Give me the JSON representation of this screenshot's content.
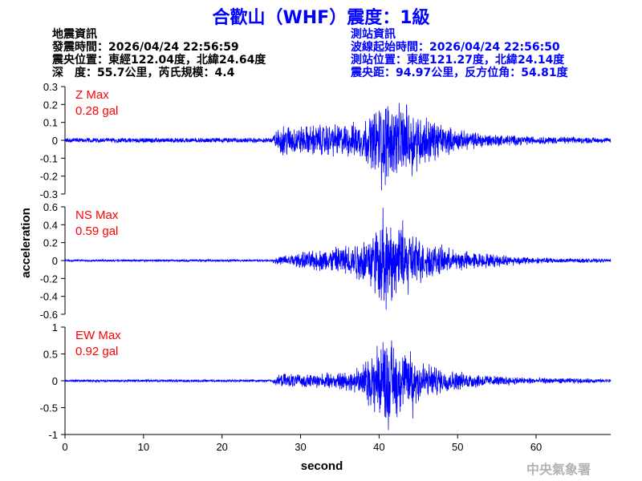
{
  "header": {
    "title": "合歡山（WHF）震度：1級"
  },
  "quake_info": {
    "heading": "地震資訊",
    "origin_time": "發震時間：2026/04/24 22:56:59",
    "epicenter": "震央位置：東經122.04度，北緯24.64度",
    "depth_magnitude": "深　度：55.7公里，芮氏規模：4.4"
  },
  "station_info": {
    "heading": "測站資訊",
    "wave_start": "波線起始時間：2026/04/24 22:56:50",
    "location": "測站位置：東經121.27度，北緯24.14度",
    "distance_azimuth": "震央距：94.97公里，反方位角：54.81度"
  },
  "agency": "中央氣象署",
  "chart_data": {
    "type": "line",
    "xlabel": "second",
    "ylabel": "acceleration",
    "xlim": [
      0,
      69.5
    ],
    "x_ticks": [
      "0",
      "10",
      "20",
      "30",
      "40",
      "50",
      "60"
    ],
    "colors": {
      "trace": "#0000ff",
      "max_label": "#ff0000"
    },
    "panels": [
      {
        "component": "Z",
        "max_label": "Z Max",
        "max_value": "0.28 gal",
        "ylim": [
          -0.3,
          0.3
        ],
        "y_ticks": [
          "0.3",
          "0.2",
          "0.1",
          "0",
          "-0.1",
          "-0.2",
          "-0.3"
        ],
        "noise": 0.012,
        "envelope": [
          [
            0,
            0.012
          ],
          [
            26,
            0.012
          ],
          [
            27,
            0.05
          ],
          [
            28,
            0.08
          ],
          [
            30,
            0.07
          ],
          [
            33,
            0.08
          ],
          [
            36,
            0.08
          ],
          [
            38,
            0.1
          ],
          [
            39,
            0.13
          ],
          [
            40,
            0.17
          ],
          [
            41,
            0.19
          ],
          [
            42,
            0.17
          ],
          [
            43,
            0.17
          ],
          [
            44,
            0.16
          ],
          [
            46,
            0.12
          ],
          [
            48,
            0.08
          ],
          [
            50,
            0.05
          ],
          [
            55,
            0.03
          ],
          [
            60,
            0.02
          ],
          [
            69.5,
            0.012
          ]
        ],
        "peaks": [
          [
            40.3,
            -0.28
          ],
          [
            41.1,
            0.19
          ],
          [
            43.5,
            0.2
          ],
          [
            40.8,
            -0.25
          ],
          [
            44.2,
            -0.2
          ]
        ]
      },
      {
        "component": "NS",
        "max_label": "NS Max",
        "max_value": "0.59 gal",
        "ylim": [
          -0.6,
          0.6
        ],
        "y_ticks": [
          "0.6",
          "0.4",
          "0.2",
          "0",
          "-0.2",
          "-0.4",
          "-0.6"
        ],
        "noise": 0.01,
        "envelope": [
          [
            0,
            0.01
          ],
          [
            26,
            0.01
          ],
          [
            27,
            0.04
          ],
          [
            30,
            0.08
          ],
          [
            33,
            0.11
          ],
          [
            36,
            0.16
          ],
          [
            38,
            0.22
          ],
          [
            39,
            0.28
          ],
          [
            40,
            0.38
          ],
          [
            41,
            0.38
          ],
          [
            42,
            0.34
          ],
          [
            43,
            0.3
          ],
          [
            44,
            0.28
          ],
          [
            46,
            0.18
          ],
          [
            48,
            0.14
          ],
          [
            50,
            0.1
          ],
          [
            55,
            0.06
          ],
          [
            60,
            0.03
          ],
          [
            69.5,
            0.015
          ]
        ],
        "peaks": [
          [
            40.5,
            0.59
          ],
          [
            40.9,
            -0.55
          ],
          [
            41.6,
            -0.45
          ],
          [
            43.0,
            0.45
          ],
          [
            43.7,
            -0.38
          ]
        ]
      },
      {
        "component": "EW",
        "max_label": "EW Max",
        "max_value": "0.92 gal",
        "ylim": [
          -1,
          1
        ],
        "y_ticks": [
          "1",
          "0.5",
          "0",
          "-0.5",
          "-1"
        ],
        "noise": 0.02,
        "envelope": [
          [
            0,
            0.02
          ],
          [
            26,
            0.025
          ],
          [
            27,
            0.08
          ],
          [
            28,
            0.12
          ],
          [
            30,
            0.1
          ],
          [
            33,
            0.12
          ],
          [
            36,
            0.15
          ],
          [
            38,
            0.3
          ],
          [
            39,
            0.45
          ],
          [
            40,
            0.6
          ],
          [
            41,
            0.65
          ],
          [
            42,
            0.6
          ],
          [
            43,
            0.45
          ],
          [
            44,
            0.5
          ],
          [
            46,
            0.3
          ],
          [
            48,
            0.2
          ],
          [
            50,
            0.15
          ],
          [
            55,
            0.08
          ],
          [
            60,
            0.05
          ],
          [
            69.5,
            0.03
          ]
        ],
        "peaks": [
          [
            41.2,
            -0.92
          ],
          [
            41.6,
            0.75
          ],
          [
            40.5,
            0.72
          ],
          [
            42.3,
            -0.68
          ],
          [
            44.3,
            -0.7
          ],
          [
            44.0,
            0.55
          ]
        ]
      }
    ]
  }
}
